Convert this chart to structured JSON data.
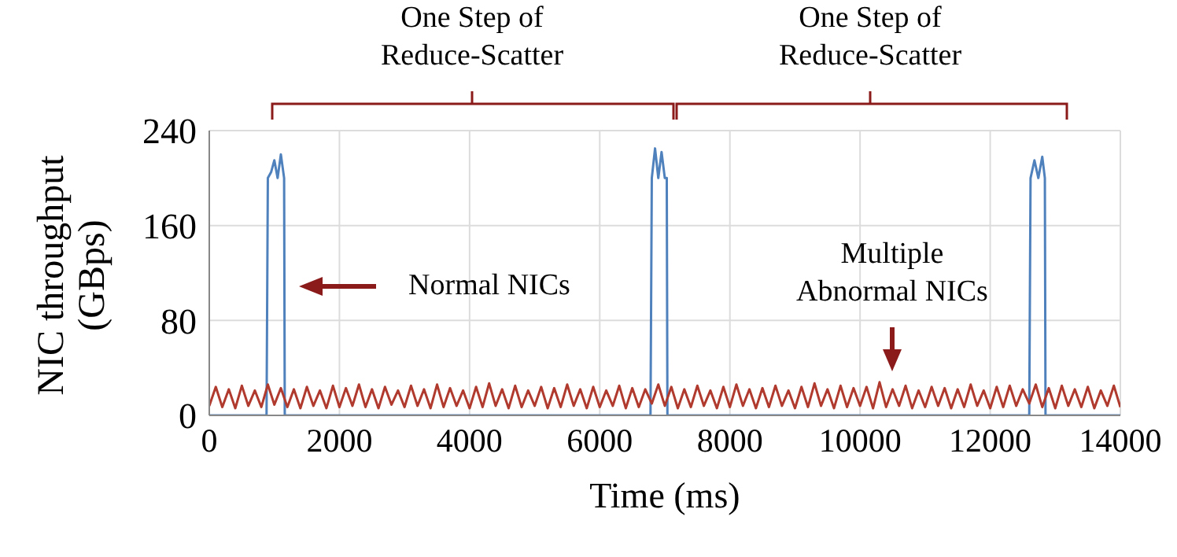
{
  "chart_data": {
    "type": "line",
    "xlabel": "Time (ms)",
    "ylabel": "NIC throughput (GBps)",
    "xlim": [
      0,
      14000
    ],
    "xticks": [
      0,
      2000,
      4000,
      6000,
      8000,
      10000,
      12000,
      14000
    ],
    "ylim": [
      0,
      240
    ],
    "yticks": [
      0,
      80,
      160,
      240
    ],
    "grid": true,
    "annotations": [
      "One Step of Reduce-Scatter",
      "One Step of Reduce-Scatter",
      "Normal NICs",
      "Multiple Abnormal NICs"
    ],
    "series": [
      {
        "color": "#4f81bd",
        "x": [
          0,
          880,
          900,
          950,
          1000,
          1050,
          1100,
          1150,
          1160,
          6780,
          6800,
          6850,
          6900,
          6950,
          7000,
          7030,
          7040,
          12600,
          12620,
          12680,
          12740,
          12800,
          12840,
          12850,
          14000
        ],
        "values": [
          0,
          0,
          200,
          205,
          215,
          200,
          220,
          200,
          0,
          0,
          200,
          225,
          200,
          222,
          200,
          200,
          0,
          0,
          200,
          215,
          200,
          218,
          200,
          0,
          0
        ]
      },
      {
        "color": "#b03a2e",
        "x": [
          0,
          100,
          200,
          300,
          400,
          500,
          600,
          700,
          800,
          900,
          1000,
          1100,
          1200,
          1300,
          1400,
          1500,
          1600,
          1700,
          1800,
          1900,
          2000,
          2100,
          2200,
          2300,
          2400,
          2500,
          2600,
          2700,
          2800,
          2900,
          3000,
          3100,
          3200,
          3300,
          3400,
          3500,
          3600,
          3700,
          3800,
          3900,
          4000,
          4100,
          4200,
          4300,
          4400,
          4500,
          4600,
          4700,
          4800,
          4900,
          5000,
          5100,
          5200,
          5300,
          5400,
          5500,
          5600,
          5700,
          5800,
          5900,
          6000,
          6100,
          6200,
          6300,
          6400,
          6500,
          6600,
          6700,
          6800,
          6900,
          7000,
          7100,
          7200,
          7300,
          7400,
          7500,
          7600,
          7700,
          7800,
          7900,
          8000,
          8100,
          8200,
          8300,
          8400,
          8500,
          8600,
          8700,
          8800,
          8900,
          9000,
          9100,
          9200,
          9300,
          9400,
          9500,
          9600,
          9700,
          9800,
          9900,
          10000,
          10100,
          10200,
          10300,
          10400,
          10500,
          10600,
          10700,
          10800,
          10900,
          11000,
          11100,
          11200,
          11300,
          11400,
          11500,
          11600,
          11700,
          11800,
          11900,
          12000,
          12100,
          12200,
          12300,
          12400,
          12500,
          12600,
          12700,
          12800,
          12900,
          13000,
          13100,
          13200,
          13300,
          13400,
          13500,
          13600,
          13700,
          13800,
          13900,
          14000
        ],
        "values": [
          8,
          24,
          7,
          22,
          6,
          25,
          8,
          21,
          7,
          26,
          9,
          23,
          7,
          22,
          6,
          24,
          8,
          21,
          6,
          25,
          7,
          23,
          8,
          26,
          7,
          22,
          6,
          24,
          9,
          21,
          7,
          25,
          8,
          22,
          6,
          26,
          7,
          23,
          8,
          21,
          6,
          24,
          7,
          27,
          8,
          22,
          6,
          25,
          7,
          21,
          8,
          24,
          6,
          23,
          7,
          26,
          8,
          22,
          6,
          24,
          7,
          21,
          8,
          25,
          6,
          23,
          7,
          22,
          10,
          26,
          8,
          24,
          6,
          22,
          7,
          25,
          8,
          21,
          6,
          24,
          7,
          26,
          8,
          22,
          6,
          23,
          7,
          25,
          8,
          21,
          6,
          24,
          7,
          27,
          8,
          22,
          6,
          25,
          7,
          23,
          8,
          24,
          6,
          28,
          7,
          22,
          8,
          25,
          6,
          21,
          7,
          24,
          8,
          23,
          6,
          22,
          7,
          26,
          8,
          21,
          6,
          24,
          7,
          25,
          8,
          22,
          10,
          26,
          7,
          23,
          6,
          25,
          8,
          22,
          7,
          24,
          6,
          21,
          8,
          25,
          7
        ]
      }
    ]
  }
}
